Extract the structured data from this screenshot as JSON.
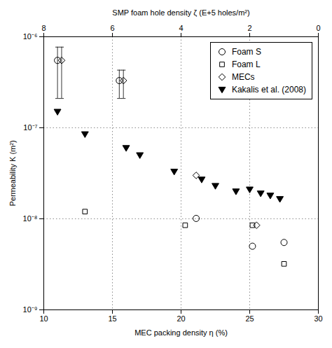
{
  "chart_data": {
    "type": "scatter",
    "xlabel": "MEC packing density η (%)",
    "ylabel": "Permeability K (m²)",
    "x2label": "SMP foam hole density ζ (E+5 holes/m²)",
    "xlim": [
      10,
      30
    ],
    "xticks": [
      10,
      15,
      20,
      25,
      30
    ],
    "x2lim": [
      8,
      0
    ],
    "x2ticks": [
      0,
      2,
      4,
      6,
      8
    ],
    "ylim": [
      1e-09,
      1e-06
    ],
    "yticks": [
      {
        "value": 1e-09,
        "label": "10⁻⁹"
      },
      {
        "value": 1e-08,
        "label": "10⁻⁸"
      },
      {
        "value": 1e-07,
        "label": "10⁻⁷"
      },
      {
        "value": 1e-06,
        "label": "10⁻⁶"
      }
    ],
    "log": "y",
    "grid": false,
    "legend": "upper right",
    "vlines": [
      15,
      20,
      25
    ],
    "hlines": [
      1e-07,
      1e-08
    ],
    "series": [
      {
        "name": "Foam S",
        "color": "black",
        "marker": "circle-open",
        "x": [
          11.0,
          15.5,
          21.1,
          25.2,
          27.5
        ],
        "y": [
          5.5e-07,
          3.3e-07,
          1.01e-08,
          5e-09,
          5.5e-09
        ],
        "yerr_lo": [
          3.4e-07,
          1.2e-07,
          0,
          0,
          0
        ],
        "yerr_hi": [
          2.2e-07,
          1e-07,
          0,
          0,
          0
        ]
      },
      {
        "name": "Foam L",
        "color": "black",
        "marker": "square-open",
        "x": [
          13.0,
          20.3,
          25.2,
          27.5
        ],
        "y": [
          1.2e-08,
          8.5e-09,
          8.5e-09,
          3.2e-09
        ],
        "yerr_lo": [
          0,
          0,
          0,
          0
        ],
        "yerr_hi": [
          0,
          0,
          0,
          0
        ]
      },
      {
        "name": "MECs",
        "color": "black",
        "marker": "diamond-open",
        "x": [
          11.3,
          15.8,
          21.1,
          25.5
        ],
        "y": [
          5.5e-07,
          3.3e-07,
          3e-08,
          8.5e-09
        ],
        "yerr_lo": [
          3.4e-07,
          1.2e-07,
          0,
          0
        ],
        "yerr_hi": [
          2.2e-07,
          1e-07,
          0,
          0
        ]
      },
      {
        "name": "Kakalis et al. (2008)",
        "color": "black",
        "marker": "triangle-down",
        "x": [
          11.0,
          13.0,
          16.0,
          17.0,
          19.5,
          21.5,
          22.5,
          24.0,
          25.0,
          25.8,
          26.5,
          27.2
        ],
        "y": [
          1.5e-07,
          8.5e-08,
          6e-08,
          5e-08,
          3.3e-08,
          2.7e-08,
          2.3e-08,
          2e-08,
          2.1e-08,
          1.9e-08,
          1.8e-08,
          1.65e-08
        ]
      }
    ]
  }
}
